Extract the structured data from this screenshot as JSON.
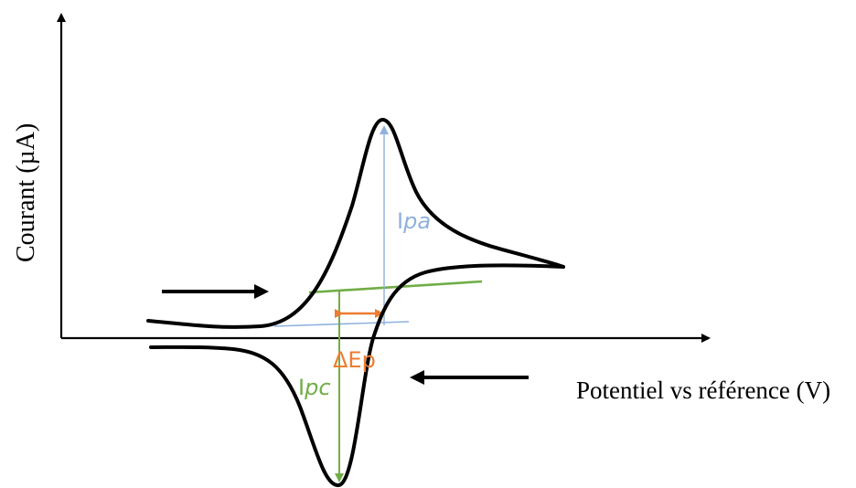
{
  "axes": {
    "x_label": "Potentiel vs référence (V)",
    "y_label": "Courant (µA)"
  },
  "annotations": {
    "ipa": {
      "prefix": "I",
      "sub": "pa"
    },
    "ipc": {
      "prefix": "I",
      "sub": "pc"
    },
    "delta_ep": "ΔEp"
  },
  "colors": {
    "curve": "#000000",
    "anodic": "#8fb1dd",
    "cathodic": "#70ad47",
    "delta": "#ed7d31"
  },
  "icons": {
    "forward_scan": "arrow-right",
    "reverse_scan": "arrow-left"
  }
}
